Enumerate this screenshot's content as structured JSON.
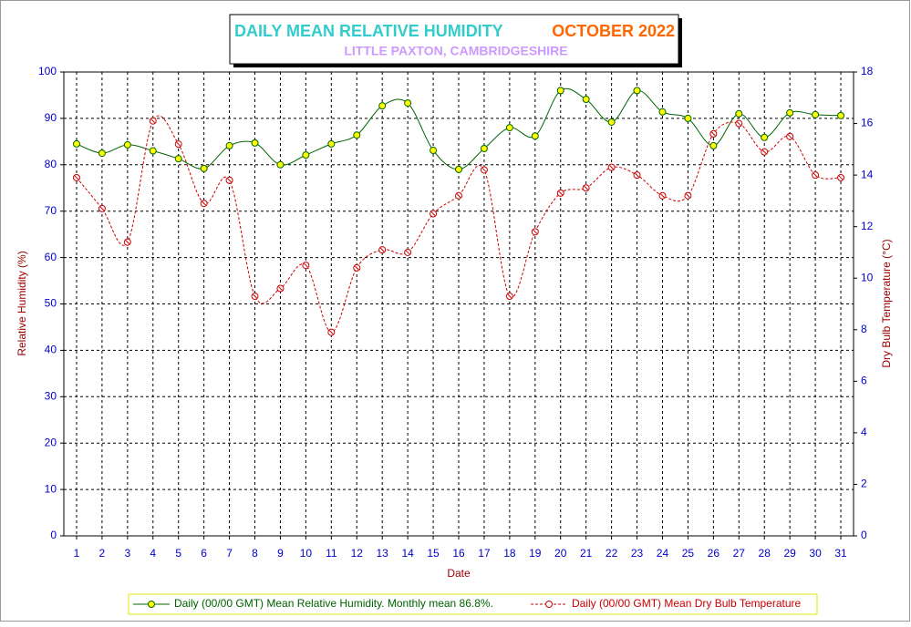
{
  "chart_data": {
    "type": "line",
    "title_parts": [
      "DAILY MEAN RELATIVE HUMIDITY",
      "OCTOBER 2022"
    ],
    "subtitle": "LITTLE PAXTON, CAMBRIDGESHIRE",
    "x_label": "Date",
    "y_label": "Relative Humidity (%)",
    "y2_label": "Dry Bulb Temperature (°C)",
    "x": [
      1,
      2,
      3,
      4,
      5,
      6,
      7,
      8,
      9,
      10,
      11,
      12,
      13,
      14,
      15,
      16,
      17,
      18,
      19,
      20,
      21,
      22,
      23,
      24,
      25,
      26,
      27,
      28,
      29,
      30,
      31
    ],
    "xlim": [
      0.5,
      31.5
    ],
    "xticks": [
      1,
      2,
      3,
      4,
      5,
      6,
      7,
      8,
      9,
      10,
      11,
      12,
      13,
      14,
      15,
      16,
      17,
      18,
      19,
      20,
      21,
      22,
      23,
      24,
      25,
      26,
      27,
      28,
      29,
      30,
      31
    ],
    "ylim": [
      0,
      100
    ],
    "yticks": [
      0,
      10,
      20,
      30,
      40,
      50,
      60,
      70,
      80,
      90,
      100
    ],
    "y2lim": [
      0,
      18
    ],
    "y2ticks": [
      0,
      2,
      4,
      6,
      8,
      10,
      12,
      14,
      16,
      18
    ],
    "grid": true,
    "series": [
      {
        "name": "Daily (00/00 GMT) Mean Relative Humidity. Monthly mean 86.8%.",
        "color": "#006400",
        "marker_fill": "#ffff00",
        "dashed": false,
        "values": [
          84.5,
          82.5,
          84.3,
          83,
          81.3,
          79.2,
          84.1,
          84.7,
          80,
          82.1,
          84.5,
          86.4,
          92.7,
          93.3,
          83.1,
          79,
          83.5,
          88,
          86.2,
          96,
          94.1,
          89.2,
          96,
          91.4,
          90,
          84.1,
          91,
          85.9,
          91.2,
          90.8,
          90.6
        ]
      },
      {
        "name": "Daily (00/00 GMT) Mean Dry Bulb Temperature",
        "color": "#cc0000",
        "marker_fill": "#ffffff",
        "dashed": true,
        "axis": "y2",
        "values": [
          13.9,
          12.7,
          11.4,
          16.1,
          15.2,
          12.9,
          13.8,
          9.3,
          9.6,
          10.5,
          7.9,
          10.4,
          11.1,
          11.0,
          12.5,
          13.2,
          14.2,
          9.3,
          11.8,
          13.3,
          13.5,
          14.3,
          14.0,
          13.2,
          13.2,
          15.6,
          16.0,
          14.9,
          15.5,
          14.0,
          13.9
        ]
      }
    ]
  }
}
